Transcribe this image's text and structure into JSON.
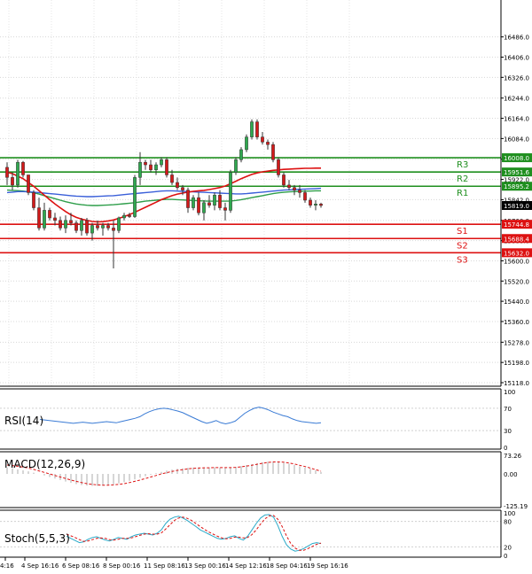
{
  "chart_data": [
    {
      "type": "candlestick",
      "title": "",
      "ylim": [
        15118.0,
        16590.0
      ],
      "y_ticks": [
        "16486.0",
        "16406.0",
        "16326.0",
        "16244.0",
        "16164.0",
        "16084.0",
        "16002.0",
        "15922.0",
        "15842.0",
        "15760.0",
        "15680.0",
        "15600.0",
        "15520.0",
        "15440.0",
        "15360.0",
        "15278.0",
        "15198.0",
        "15118.0"
      ],
      "x_ticks": [
        "4:16",
        "4 Sep 16:16",
        "6 Sep 08:16",
        "8 Sep 00:16",
        "11 Sep 08:16",
        "13 Sep 00:16",
        "14 Sep 12:16",
        "18 Sep 04:16",
        "19 Sep 16:16"
      ],
      "candles": [
        [
          15970,
          15990,
          15900,
          15930
        ],
        [
          15930,
          15950,
          15880,
          15900
        ],
        [
          15900,
          16000,
          15890,
          15990
        ],
        [
          15990,
          15995,
          15930,
          15940
        ],
        [
          15940,
          15940,
          15860,
          15870
        ],
        [
          15870,
          15880,
          15800,
          15810
        ],
        [
          15810,
          15850,
          15720,
          15730
        ],
        [
          15730,
          15830,
          15720,
          15800
        ],
        [
          15800,
          15810,
          15760,
          15770
        ],
        [
          15770,
          15790,
          15740,
          15760
        ],
        [
          15760,
          15775,
          15720,
          15730
        ],
        [
          15730,
          15780,
          15710,
          15760
        ],
        [
          15760,
          15790,
          15740,
          15750
        ],
        [
          15750,
          15760,
          15710,
          15720
        ],
        [
          15720,
          15770,
          15700,
          15760
        ],
        [
          15760,
          15770,
          15700,
          15710
        ],
        [
          15710,
          15750,
          15680,
          15740
        ],
        [
          15740,
          15760,
          15720,
          15730
        ],
        [
          15730,
          15750,
          15700,
          15740
        ],
        [
          15740,
          15750,
          15720,
          15730
        ],
        [
          15730,
          15760,
          15570,
          15720
        ],
        [
          15720,
          15775,
          15710,
          15770
        ],
        [
          15770,
          15790,
          15760,
          15780
        ],
        [
          15780,
          15790,
          15770,
          15775
        ],
        [
          15775,
          15940,
          15770,
          15930
        ],
        [
          15930,
          16030,
          15900,
          15990
        ],
        [
          15990,
          16000,
          15960,
          15980
        ],
        [
          15980,
          16000,
          15950,
          15960
        ],
        [
          15960,
          15990,
          15940,
          15980
        ],
        [
          15980,
          16010,
          15970,
          16000
        ],
        [
          16000,
          16010,
          15930,
          15940
        ],
        [
          15940,
          15960,
          15900,
          15910
        ],
        [
          15910,
          15930,
          15880,
          15890
        ],
        [
          15890,
          15900,
          15860,
          15880
        ],
        [
          15880,
          15890,
          15790,
          15810
        ],
        [
          15810,
          15860,
          15800,
          15850
        ],
        [
          15850,
          15870,
          15780,
          15790
        ],
        [
          15790,
          15840,
          15760,
          15830
        ],
        [
          15830,
          15860,
          15810,
          15820
        ],
        [
          15820,
          15870,
          15800,
          15860
        ],
        [
          15860,
          15880,
          15800,
          15810
        ],
        [
          15810,
          15830,
          15760,
          15800
        ],
        [
          15800,
          15960,
          15790,
          15950
        ],
        [
          15950,
          16010,
          15940,
          16000
        ],
        [
          16000,
          16050,
          15990,
          16040
        ],
        [
          16040,
          16100,
          16030,
          16090
        ],
        [
          16090,
          16160,
          16080,
          16150
        ],
        [
          16150,
          16160,
          16080,
          16090
        ],
        [
          16090,
          16110,
          16060,
          16070
        ],
        [
          16070,
          16080,
          16040,
          16060
        ],
        [
          16060,
          16070,
          15990,
          16000
        ],
        [
          16000,
          16010,
          15930,
          15940
        ],
        [
          15940,
          15950,
          15890,
          15900
        ],
        [
          15900,
          15920,
          15880,
          15890
        ],
        [
          15890,
          15900,
          15860,
          15880
        ],
        [
          15880,
          15900,
          15850,
          15870
        ],
        [
          15870,
          15880,
          15830,
          15840
        ],
        [
          15840,
          15850,
          15810,
          15820
        ],
        [
          15820,
          15840,
          15800,
          15825
        ],
        [
          15825,
          15830,
          15810,
          15819
        ]
      ],
      "ma_red": [
        15950,
        15945,
        15935,
        15925,
        15910,
        15895,
        15878,
        15860,
        15842,
        15825,
        15810,
        15795,
        15782,
        15772,
        15765,
        15760,
        15756,
        15754,
        15755,
        15758,
        15762,
        15768,
        15775,
        15783,
        15792,
        15802,
        15812,
        15822,
        15832,
        15842,
        15850,
        15858,
        15864,
        15868,
        15872,
        15875,
        15877,
        15879,
        15882,
        15886,
        15890,
        15896,
        15905,
        15915,
        15925,
        15934,
        15942,
        15948,
        15952,
        15955,
        15958,
        15960,
        15962,
        15963,
        15964,
        15965,
        15966,
        15966,
        15967,
        15967
      ],
      "ma_blue": [
        15870,
        15872,
        15874,
        15874,
        15873,
        15872,
        15870,
        15868,
        15866,
        15864,
        15862,
        15860,
        15858,
        15856,
        15855,
        15854,
        15854,
        15855,
        15856,
        15857,
        15858,
        15860,
        15862,
        15864,
        15866,
        15868,
        15870,
        15872,
        15874,
        15876,
        15877,
        15877,
        15876,
        15875,
        15874,
        15873,
        15872,
        15871,
        15870,
        15869,
        15868,
        15867,
        15866,
        15865,
        15865,
        15866,
        15868,
        15870,
        15872,
        15874,
        15876,
        15878,
        15880,
        15881,
        15882,
        15883,
        15884,
        15885,
        15886,
        15887
      ],
      "ma_green": [
        15880,
        15879,
        15878,
        15876,
        15873,
        15869,
        15864,
        15858,
        15852,
        15846,
        15840,
        15834,
        15829,
        15825,
        15822,
        15820,
        15819,
        15819,
        15820,
        15821,
        15822,
        15824,
        15826,
        15828,
        15830,
        15833,
        15836,
        15838,
        15840,
        15842,
        15843,
        15843,
        15842,
        15841,
        15840,
        15839,
        15838,
        15837,
        15836,
        15836,
        15836,
        15836,
        15837,
        15839,
        15842,
        15846,
        15850,
        15854,
        15858,
        15862,
        15866,
        15869,
        15871,
        15873,
        15874,
        15875,
        15876,
        15876,
        15877,
        15877
      ],
      "levels": [
        {
          "name": "R3",
          "value": 16008.0,
          "label": "16008.0",
          "color": "#1f8f1f"
        },
        {
          "name": "R2",
          "value": 15951.6,
          "label": "15951.6",
          "color": "#1f8f1f"
        },
        {
          "name": "R1",
          "value": 15895.2,
          "label": "15895.2",
          "color": "#1f8f1f"
        },
        {
          "name": "S1",
          "value": 15744.8,
          "label": "15744.8",
          "color": "#dd1111"
        },
        {
          "name": "S2",
          "value": 15688.4,
          "label": "15688.4",
          "color": "#dd1111"
        },
        {
          "name": "S3",
          "value": 15632.0,
          "label": "15632.0",
          "color": "#dd1111"
        }
      ],
      "current_price": {
        "value": 15819.0,
        "label": "15819.0"
      }
    },
    {
      "type": "line",
      "title": "RSI(14)",
      "ylim": [
        0,
        100
      ],
      "y_ticks": [
        "100",
        "70",
        "30",
        "0"
      ],
      "series": [
        {
          "color": "#3a7bd5",
          "values": [
            50,
            49,
            48,
            47,
            46,
            45,
            44,
            43,
            44,
            45,
            44,
            43,
            44,
            45,
            46,
            45,
            44,
            46,
            48,
            50,
            52,
            55,
            60,
            64,
            67,
            69,
            70,
            69,
            67,
            65,
            62,
            58,
            54,
            50,
            46,
            43,
            45,
            48,
            44,
            42,
            44,
            47,
            54,
            61,
            66,
            70,
            72,
            70,
            67,
            63,
            60,
            57,
            55,
            51,
            48,
            46,
            45,
            44,
            43,
            44
          ]
        }
      ]
    },
    {
      "type": "line",
      "title": "MACD(12,26,9)",
      "ylim": [
        -125.19,
        73.26
      ],
      "y_ticks": [
        "73.26",
        "0.00",
        "-125.19"
      ],
      "histogram": [
        25,
        22,
        18,
        14,
        10,
        5,
        0,
        -6,
        -12,
        -18,
        -24,
        -30,
        -35,
        -40,
        -44,
        -46,
        -47,
        -47,
        -46,
        -44,
        -41,
        -37,
        -32,
        -27,
        -21,
        -15,
        -9,
        -3,
        3,
        8,
        13,
        17,
        20,
        22,
        24,
        25,
        26,
        26,
        26,
        26,
        25,
        25,
        26,
        28,
        31,
        35,
        39,
        43,
        46,
        48,
        48,
        47,
        44,
        40,
        35,
        30,
        25,
        20,
        14,
        8
      ],
      "signal": [
        35,
        33,
        30,
        27,
        23,
        18,
        12,
        6,
        0,
        -6,
        -12,
        -18,
        -24,
        -29,
        -34,
        -38,
        -41,
        -43,
        -44,
        -44,
        -43,
        -41,
        -38,
        -34,
        -29,
        -24,
        -18,
        -12,
        -6,
        0,
        5,
        10,
        14,
        17,
        20,
        22,
        23,
        24,
        24,
        25,
        25,
        25,
        25,
        26,
        28,
        31,
        34,
        38,
        42,
        45,
        47,
        47,
        46,
        43,
        39,
        34,
        29,
        23,
        17,
        11
      ]
    },
    {
      "type": "line",
      "title": "Stoch(5,5,3)",
      "ylim": [
        0,
        100
      ],
      "y_ticks": [
        "100",
        "80",
        "20",
        "0"
      ],
      "series": [
        {
          "color": "#29a9c8",
          "values": [
            45,
            40,
            35,
            30,
            32,
            38,
            42,
            44,
            40,
            36,
            34,
            38,
            42,
            40,
            38,
            44,
            48,
            50,
            52,
            50,
            48,
            52,
            60,
            75,
            85,
            90,
            92,
            88,
            82,
            75,
            68,
            60,
            55,
            50,
            45,
            40,
            38,
            40,
            44,
            46,
            40,
            36,
            45,
            60,
            75,
            88,
            95,
            96,
            90,
            70,
            45,
            25,
            15,
            10,
            12,
            16,
            22,
            28,
            30,
            28
          ]
        },
        {
          "color": "#dd1111",
          "values": [
            50,
            46,
            42,
            37,
            33,
            34,
            37,
            40,
            41,
            40,
            37,
            36,
            38,
            40,
            40,
            41,
            44,
            47,
            50,
            51,
            50,
            50,
            53,
            62,
            72,
            82,
            88,
            90,
            87,
            82,
            75,
            68,
            61,
            55,
            50,
            45,
            41,
            39,
            40,
            43,
            43,
            41,
            42,
            49,
            60,
            74,
            86,
            93,
            94,
            85,
            68,
            46,
            28,
            17,
            12,
            12,
            16,
            21,
            26,
            29
          ]
        }
      ]
    }
  ]
}
